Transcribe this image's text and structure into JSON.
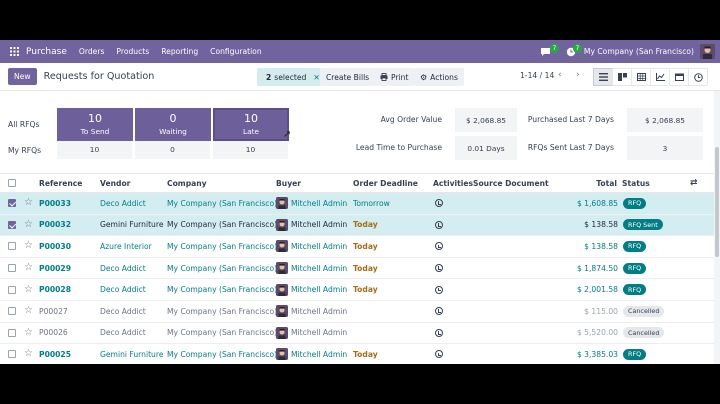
{
  "navbar": {
    "app_name": "Purchase",
    "menus": [
      "Orders",
      "Products",
      "Reporting",
      "Configuration"
    ],
    "chat_badge": "7",
    "activity_badge": "7",
    "company": "My Company (San Francisco)"
  },
  "control": {
    "new_label": "New",
    "title": "Requests for Quotation",
    "selected_count": "2",
    "selected_label": "selected",
    "create_bills": "Create Bills",
    "print": "Print",
    "actions": "Actions",
    "pager": "1-14 / 14"
  },
  "dashboard": {
    "all_rfqs_label": "All RFQs",
    "my_rfqs_label": "My RFQs",
    "tiles": [
      {
        "value": "10",
        "label": "To Send",
        "mine": "10"
      },
      {
        "value": "0",
        "label": "Waiting",
        "mine": "0"
      },
      {
        "value": "10",
        "label": "Late",
        "mine": "10"
      }
    ],
    "kpis": [
      {
        "label": "Avg Order Value",
        "value": "$ 2,068.85"
      },
      {
        "label": "Purchased Last 7 Days",
        "value": "$ 2,068.85"
      },
      {
        "label": "Lead Time to Purchase",
        "value": "0.01 Days"
      },
      {
        "label": "RFQs Sent Last 7 Days",
        "value": "3"
      }
    ]
  },
  "table": {
    "headers": [
      "Reference",
      "Vendor",
      "Company",
      "Buyer",
      "Order Deadline",
      "Activities",
      "Source Document",
      "Total",
      "Status"
    ],
    "rows": [
      {
        "ref": "P00033",
        "vendor": "Deco Addict",
        "company": "My Company (San Francisco)",
        "buyer": "Mitchell Admin",
        "deadline": "Tomorrow",
        "total": "$ 1,608.85",
        "status": "RFQ"
      },
      {
        "ref": "P00032",
        "vendor": "Gemini Furniture",
        "company": "My Company (San Francisco)",
        "buyer": "Mitchell Admin",
        "deadline": "Today",
        "total": "$ 138.58",
        "status": "RFQ Sent"
      },
      {
        "ref": "P00030",
        "vendor": "Azure Interior",
        "company": "My Company (San Francisco)",
        "buyer": "Mitchell Admin",
        "deadline": "Today",
        "total": "$ 138.58",
        "status": "RFQ"
      },
      {
        "ref": "P00029",
        "vendor": "Deco Addict",
        "company": "My Company (San Francisco)",
        "buyer": "Mitchell Admin",
        "deadline": "Today",
        "total": "$ 1,874.50",
        "status": "RFQ"
      },
      {
        "ref": "P00028",
        "vendor": "Deco Addict",
        "company": "My Company (San Francisco)",
        "buyer": "Mitchell Admin",
        "deadline": "Today",
        "total": "$ 2,001.58",
        "status": "RFQ"
      },
      {
        "ref": "P00027",
        "vendor": "Deco Addict",
        "company": "My Company (San Francisco)",
        "buyer": "Mitchell Admin",
        "deadline": "",
        "total": "$ 115.00",
        "status": "Cancelled"
      },
      {
        "ref": "P00026",
        "vendor": "Deco Addict",
        "company": "My Company (San Francisco)",
        "buyer": "Mitchell Admin",
        "deadline": "",
        "total": "$ 5,520.00",
        "status": "Cancelled"
      },
      {
        "ref": "P00025",
        "vendor": "Gemini Furniture",
        "company": "My Company (San Francisco)",
        "buyer": "Mitchell Admin",
        "deadline": "Today",
        "total": "$ 3,385.03",
        "status": "RFQ"
      }
    ]
  },
  "colors": {
    "brand": "#71639e",
    "link": "#017e84",
    "selected_row": "#d4edf0",
    "today": "#a36d1a"
  }
}
